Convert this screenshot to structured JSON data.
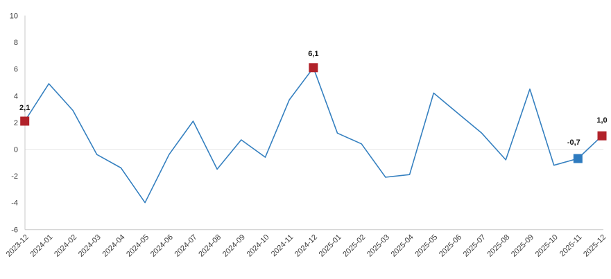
{
  "chart_data": {
    "type": "line",
    "title": "",
    "xlabel": "",
    "ylabel": "",
    "categories": [
      "2023-12",
      "2024-01",
      "2024-02",
      "2024-03",
      "2024-04",
      "2024-05",
      "2024-06",
      "2024-07",
      "2024-08",
      "2024-09",
      "2024-10",
      "2024-11",
      "2024-12",
      "2025-01",
      "2025-02",
      "2025-03",
      "2025-04",
      "2025-05",
      "2025-06",
      "2025-07",
      "2025-08",
      "2025-09",
      "2025-10",
      "2025-11",
      "2025-12"
    ],
    "values": [
      2.1,
      4.9,
      2.9,
      -0.4,
      -1.4,
      -4.0,
      -0.4,
      2.1,
      -1.5,
      0.7,
      -0.6,
      3.7,
      6.1,
      1.2,
      0.4,
      -2.1,
      -1.9,
      4.2,
      2.7,
      1.2,
      -0.8,
      4.5,
      -1.2,
      -0.7,
      1.0
    ],
    "ylim": [
      -6,
      10
    ],
    "ytick_labels": [
      "10",
      "8",
      "6",
      "4",
      "2",
      "0",
      "-2",
      "-4",
      "-6"
    ],
    "ytick_values": [
      10,
      8,
      6,
      4,
      2,
      0,
      -2,
      -4,
      -6
    ],
    "gridlines_y": [
      0
    ],
    "legend_position": "none",
    "line_color": "#3580c0",
    "grid_color": "#e8e8e8",
    "axis_color": "#c9c9c9",
    "annotations": [
      {
        "index": 0,
        "label": "2,1",
        "marker": "square",
        "color": "#b1222a",
        "offset": [
          0,
          -16
        ]
      },
      {
        "index": 12,
        "label": "6,1",
        "marker": "square",
        "color": "#b1222a",
        "offset": [
          0,
          -17
        ]
      },
      {
        "index": 23,
        "label": "-0,7",
        "marker": "square",
        "color": "#2e7bbf",
        "offset": [
          -6,
          -20
        ]
      },
      {
        "index": 24,
        "label": "1,0",
        "marker": "square",
        "color": "#b1222a",
        "offset": [
          0,
          -19
        ]
      }
    ]
  }
}
